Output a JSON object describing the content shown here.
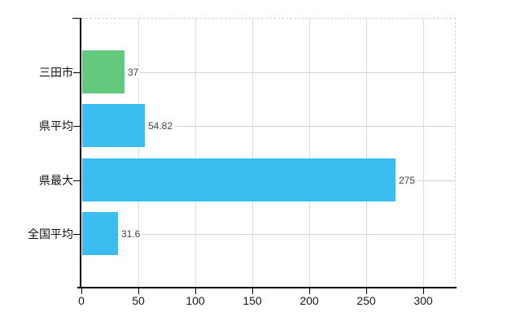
{
  "chart_data": {
    "type": "bar",
    "orientation": "horizontal",
    "title": "",
    "xlabel": "",
    "ylabel": "",
    "categories": [
      "三田市",
      "県平均",
      "県最大",
      "全国平均"
    ],
    "values": [
      37,
      54.82,
      275,
      31.6
    ],
    "value_labels": [
      "37",
      "54.82",
      "275",
      "31.6"
    ],
    "bar_colors": [
      "#63c97c",
      "#3bbdf0",
      "#3bbdf0",
      "#3bbdf0"
    ],
    "bar_textures": [
      "dots",
      "none",
      "none",
      "none"
    ],
    "x_tick_labels": [
      "0",
      "50",
      "100",
      "150",
      "200",
      "250",
      "300"
    ],
    "x_tick_values": [
      0,
      50,
      100,
      150,
      200,
      250,
      300
    ],
    "xlim": [
      0,
      328.6
    ],
    "grid": true,
    "legend": null,
    "colors": {
      "background": "#ffffff",
      "axis": "#000000",
      "grid_vertical": "#dcdcdc",
      "grid_horizontal": "#cfdacf",
      "value_label": "#444444",
      "tick_label": "#1a1a1a"
    }
  }
}
